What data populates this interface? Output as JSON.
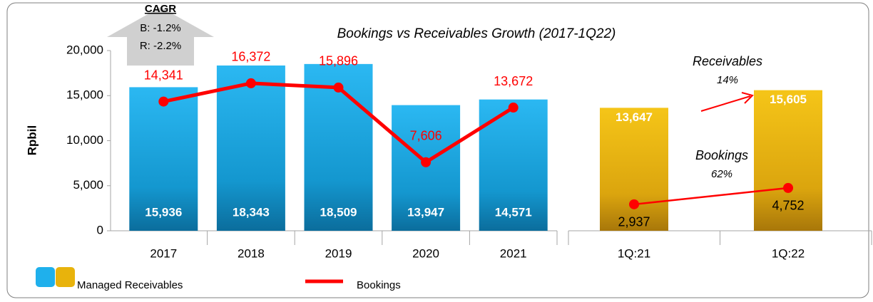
{
  "chart_data": [
    {
      "type": "bar",
      "title": "Bookings vs Receivables Growth (2017-1Q22)",
      "y_label": "Rpbil",
      "categories": [
        "2017",
        "2018",
        "2019",
        "2020",
        "2021"
      ],
      "series": [
        {
          "name": "Managed Receivables",
          "type": "bar",
          "color": "#1fb0ec",
          "values": [
            15936,
            18343,
            18509,
            13947,
            14571
          ],
          "value_labels": [
            "15,936",
            "18,343",
            "18,509",
            "13,947",
            "14,571"
          ]
        },
        {
          "name": "Bookings",
          "type": "line",
          "color": "#ff0000",
          "values": [
            14341,
            16372,
            15896,
            7606,
            13672
          ],
          "value_labels": [
            "14,341",
            "16,372",
            "15,896",
            "7,606",
            "13,672"
          ]
        }
      ],
      "ylim": [
        0,
        20000
      ],
      "yticks": [
        0,
        {
          "value": 5000,
          "label": "5,000"
        },
        {
          "value": 10000,
          "label": "10,000"
        },
        {
          "value": 15000,
          "label": "15,000"
        },
        {
          "value": 20000,
          "label": "20,000"
        }
      ],
      "annotations": [
        "CAGR",
        "B: -1.2%",
        "R: -2.2%"
      ]
    },
    {
      "type": "bar",
      "categories": [
        "1Q:21",
        "1Q:22"
      ],
      "series": [
        {
          "type": "bar",
          "color": "#e8b30c",
          "values": [
            13647,
            15605
          ],
          "value_labels": [
            "13,647",
            "15,605"
          ]
        },
        {
          "type": "line",
          "color": "#ff0000",
          "values": [
            2937,
            4752
          ],
          "value_labels": [
            "2,937",
            "4,752"
          ]
        }
      ],
      "ylim": [
        0,
        20000
      ],
      "annotations": [
        "Receivables",
        "14%",
        "Bookings",
        "62%"
      ]
    }
  ]
}
